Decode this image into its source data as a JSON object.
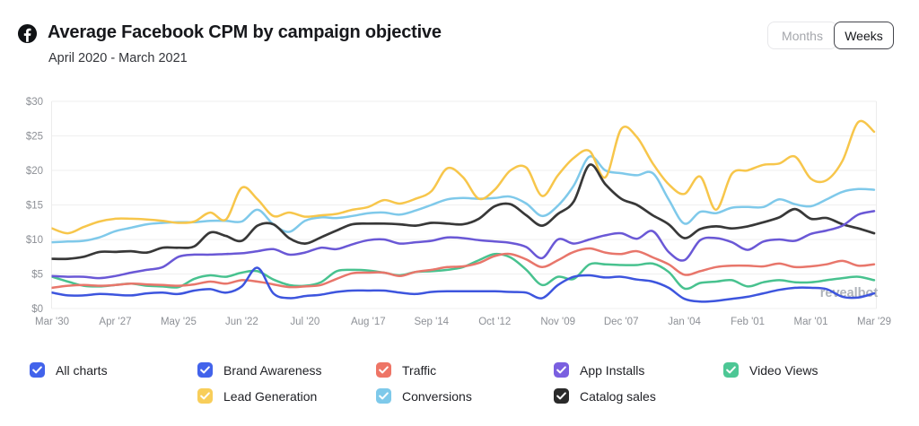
{
  "header": {
    "icon": "facebook",
    "title": "Average Facebook CPM by campaign objective",
    "subtitle": "April 2020 - March 2021",
    "toggle": {
      "options": [
        "Months",
        "Weeks"
      ],
      "selected": "Weeks"
    }
  },
  "watermark": "revealbot",
  "chart_data": {
    "type": "line",
    "title": "Average Facebook CPM by campaign objective",
    "period": "April 2020 - March 2021",
    "granularity": "weekly",
    "y_unit": "$",
    "ylim": [
      0,
      30
    ],
    "grid": "horizontal",
    "legend_position": "bottom",
    "y_tick_values": [
      30,
      25,
      20,
      15,
      10,
      5,
      0
    ],
    "y_tick_labels": [
      "$30",
      "$25",
      "$20",
      "$15",
      "$10",
      "$5",
      "$0"
    ],
    "x_tick_labels": [
      "Mar '30",
      "Apr '27",
      "May '25",
      "Jun '22",
      "Jul '20",
      "Aug '17",
      "Sep '14",
      "Oct '12",
      "Nov '09",
      "Dec '07",
      "Jan '04",
      "Feb '01",
      "Mar '01",
      "Mar '29"
    ],
    "x_tick_week_indices": [
      0,
      4,
      8,
      12,
      16,
      20,
      24,
      28,
      32,
      36,
      40,
      44,
      48,
      52
    ],
    "weeks_total": 53,
    "series": [
      {
        "name": "Conversions",
        "color": "#7fc9ea",
        "values": [
          9.6,
          9.7,
          9.8,
          10.3,
          11.2,
          11.7,
          12.2,
          12.4,
          12.5,
          12.5,
          12.7,
          12.7,
          12.6,
          14.3,
          12.2,
          11.1,
          12.7,
          13.2,
          13.1,
          13.4,
          13.8,
          13.9,
          13.6,
          14.2,
          15.0,
          15.8,
          16.0,
          15.9,
          16.0,
          16.2,
          15.2,
          13.4,
          14.9,
          17.8,
          22.0,
          20.0,
          19.6,
          19.3,
          19.6,
          15.8,
          12.3,
          14.0,
          13.8,
          14.6,
          14.7,
          14.7,
          15.8,
          15.1,
          14.8,
          15.8,
          16.9,
          17.3,
          17.2
        ]
      },
      {
        "name": "Lead Generation",
        "color": "#f7c64b",
        "values": [
          11.6,
          10.9,
          11.8,
          12.6,
          13.0,
          13.0,
          12.9,
          12.7,
          12.4,
          12.6,
          13.9,
          12.9,
          17.5,
          15.8,
          13.4,
          13.9,
          13.3,
          13.5,
          13.7,
          14.3,
          14.7,
          15.7,
          15.2,
          15.9,
          17.0,
          20.3,
          19.0,
          15.9,
          17.2,
          20.0,
          20.4,
          16.3,
          19.3,
          21.8,
          22.8,
          19.0,
          26.0,
          24.8,
          21.0,
          18.0,
          16.6,
          19.1,
          14.3,
          19.5,
          20.0,
          20.8,
          21.0,
          22.0,
          18.8,
          18.6,
          21.4,
          27.0,
          25.6
        ]
      },
      {
        "name": "Catalog sales",
        "color": "#383838",
        "values": [
          7.2,
          7.2,
          7.5,
          8.2,
          8.2,
          8.3,
          8.1,
          8.8,
          8.8,
          9.0,
          11.0,
          10.5,
          9.8,
          12.0,
          12.2,
          10.2,
          9.4,
          10.3,
          11.3,
          12.2,
          12.3,
          12.3,
          12.2,
          12.0,
          12.4,
          12.3,
          12.2,
          13.0,
          14.8,
          15.1,
          13.5,
          12.0,
          13.7,
          15.5,
          20.8,
          18.0,
          15.9,
          15.0,
          13.5,
          12.2,
          10.2,
          11.5,
          11.9,
          11.6,
          11.9,
          12.5,
          13.2,
          14.4,
          13.0,
          13.1,
          12.2,
          11.6,
          10.9
        ]
      },
      {
        "name": "Video Views",
        "color": "#48c28f",
        "values": [
          4.6,
          3.9,
          3.3,
          3.2,
          3.4,
          3.6,
          3.3,
          3.2,
          3.1,
          4.3,
          4.8,
          4.6,
          5.2,
          5.4,
          4.2,
          3.4,
          3.3,
          3.8,
          5.4,
          5.6,
          5.5,
          5.2,
          4.8,
          5.3,
          5.4,
          5.6,
          6.0,
          7.0,
          7.9,
          7.4,
          5.6,
          3.4,
          4.6,
          4.3,
          6.4,
          6.4,
          6.3,
          6.3,
          6.5,
          5.3,
          2.9,
          3.7,
          3.9,
          4.1,
          3.2,
          3.8,
          4.1,
          3.8,
          3.8,
          4.1,
          4.4,
          4.6,
          4.1
        ]
      },
      {
        "name": "Traffic",
        "color": "#e8766b",
        "values": [
          3.0,
          3.3,
          3.4,
          3.3,
          3.4,
          3.6,
          3.5,
          3.4,
          3.3,
          3.5,
          3.9,
          3.6,
          4.1,
          3.9,
          3.5,
          3.1,
          3.2,
          3.4,
          4.3,
          5.1,
          5.2,
          5.2,
          4.7,
          5.3,
          5.6,
          6.0,
          6.1,
          6.6,
          7.6,
          7.9,
          7.1,
          6.0,
          7.0,
          8.2,
          8.7,
          8.1,
          7.9,
          8.3,
          7.4,
          6.4,
          4.9,
          5.4,
          6.0,
          6.2,
          6.2,
          6.1,
          6.5,
          6.0,
          6.1,
          6.4,
          6.9,
          6.2,
          6.4
        ]
      },
      {
        "name": "App Installs",
        "color": "#6a58d6",
        "values": [
          4.7,
          4.6,
          4.6,
          4.4,
          4.7,
          5.2,
          5.6,
          6.0,
          7.5,
          7.8,
          7.8,
          7.9,
          8.0,
          8.3,
          8.6,
          7.8,
          8.1,
          8.8,
          8.6,
          9.3,
          9.9,
          10.0,
          9.4,
          9.6,
          9.8,
          10.3,
          10.2,
          9.9,
          9.7,
          9.5,
          8.9,
          7.3,
          10.0,
          9.4,
          10.0,
          10.6,
          10.9,
          10.1,
          11.2,
          8.2,
          7.0,
          9.9,
          10.2,
          9.6,
          8.5,
          9.7,
          10.0,
          9.8,
          10.8,
          11.3,
          12.0,
          13.6,
          14.1
        ]
      },
      {
        "name": "Brand Awareness",
        "color": "#3d55de",
        "values": [
          2.3,
          1.9,
          1.9,
          2.1,
          2.0,
          1.9,
          2.2,
          2.3,
          2.1,
          2.6,
          2.8,
          2.3,
          3.2,
          5.9,
          2.2,
          1.5,
          1.8,
          2.0,
          2.4,
          2.6,
          2.6,
          2.6,
          2.3,
          2.1,
          2.4,
          2.5,
          2.5,
          2.5,
          2.5,
          2.4,
          2.3,
          1.5,
          3.4,
          4.6,
          4.8,
          4.5,
          4.6,
          4.2,
          3.9,
          3.0,
          1.4,
          1.0,
          1.1,
          1.4,
          1.7,
          2.2,
          2.7,
          3.0,
          3.0,
          2.8,
          1.7,
          1.6,
          2.2
        ]
      }
    ]
  },
  "legend": {
    "items": [
      {
        "label": "All charts",
        "color": "#4263eb",
        "checked": true,
        "col": 0,
        "row": 0
      },
      {
        "label": "Brand Awareness",
        "color": "#4263eb",
        "checked": true,
        "col": 1,
        "row": 0
      },
      {
        "label": "Traffic",
        "color": "#ee7566",
        "checked": true,
        "col": 2,
        "row": 0
      },
      {
        "label": "App Installs",
        "color": "#7a5fe0",
        "checked": true,
        "col": 3,
        "row": 0
      },
      {
        "label": "Video Views",
        "color": "#4dc795",
        "checked": true,
        "col": 4,
        "row": 0
      },
      {
        "label": "Lead Generation",
        "color": "#f8ce5a",
        "checked": true,
        "col": 1,
        "row": 1
      },
      {
        "label": "Conversions",
        "color": "#7ec9ea",
        "checked": true,
        "col": 2,
        "row": 1
      },
      {
        "label": "Catalog sales",
        "color": "#2a2a2a",
        "checked": true,
        "col": 3,
        "row": 1
      }
    ]
  }
}
